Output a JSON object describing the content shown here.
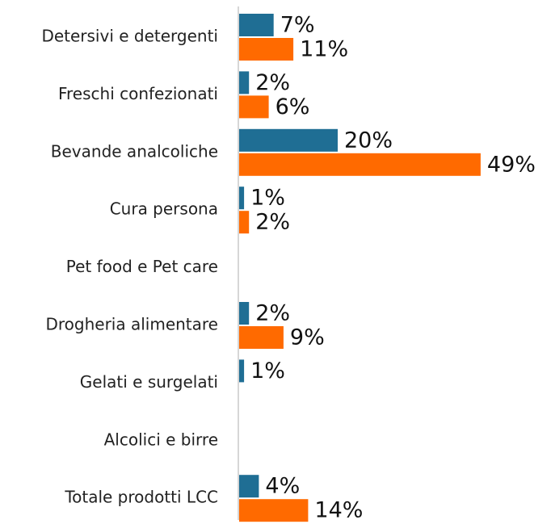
{
  "chart_data": {
    "type": "hbar",
    "categories": [
      "Detersivi e detergenti",
      "Freschi confezionati",
      "Bevande analcoliche",
      "Cura persona",
      "Pet food e Pet care",
      "Drogheria alimentare",
      "Gelati e surgelati",
      "Alcolici e birre",
      "Totale prodotti LCC"
    ],
    "series": [
      {
        "color": "#1f6e94",
        "values": [
          7,
          2,
          20,
          1,
          null,
          2,
          1,
          null,
          4
        ],
        "value_labels": [
          "7%",
          "2%",
          "20%",
          "1%",
          null,
          "2%",
          "1%",
          null,
          "4%"
        ]
      },
      {
        "color": "#ff6a00",
        "values": [
          11,
          6,
          49,
          2,
          null,
          9,
          null,
          null,
          14
        ],
        "value_labels": [
          "11%",
          "6%",
          "49%",
          "2%",
          null,
          "9%",
          null,
          null,
          "14%"
        ]
      }
    ]
  }
}
